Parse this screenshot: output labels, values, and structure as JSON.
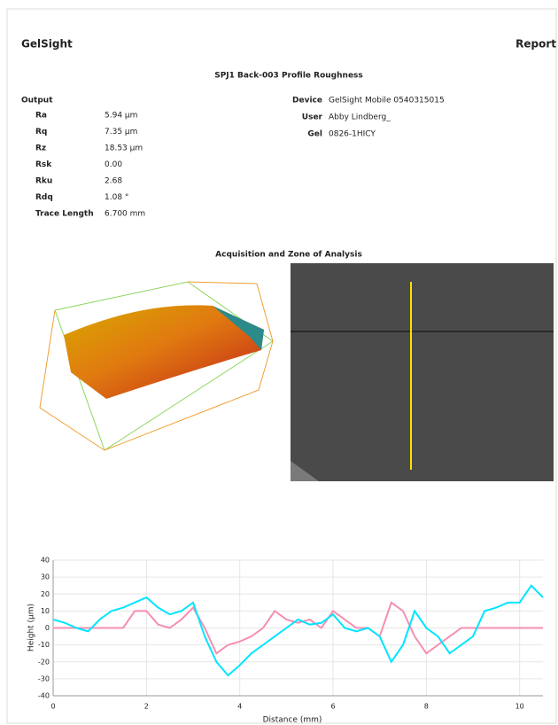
{
  "header": {
    "brand": "GelSight",
    "report": "Report",
    "title": "SPJ1 Back-003   Profile Roughness"
  },
  "output": {
    "heading": "Output",
    "rows": [
      [
        "Ra",
        "5.94 µm"
      ],
      [
        "Rq",
        "7.35 µm"
      ],
      [
        "Rz",
        "18.53 µm"
      ],
      [
        "Rsk",
        "0.00"
      ],
      [
        "Rku",
        "2.68"
      ],
      [
        "Rdq",
        "1.08 °"
      ],
      [
        "Trace Length",
        "6.700 mm"
      ]
    ]
  },
  "info": {
    "rows": [
      [
        "Device",
        "GelSight Mobile 0540315015"
      ],
      [
        "User",
        "Abby Lindberg_"
      ],
      [
        "Gel",
        "0826-1HICY"
      ]
    ]
  },
  "figure_title": "Acquisition and Zone of Analysis",
  "chart_data": {
    "type": "line",
    "x_label": "Distance (mm)",
    "y_label": "Height (µm)",
    "x": [
      0,
      0.25,
      0.5,
      0.75,
      1,
      1.25,
      1.5,
      1.75,
      2,
      2.25,
      2.5,
      2.75,
      3,
      3.25,
      3.5,
      3.75,
      4,
      4.25,
      4.5,
      4.75,
      5,
      5.25,
      5.5,
      5.75,
      6,
      6.25,
      6.5,
      6.75,
      7,
      7.25,
      7.5,
      7.75,
      8,
      8.25,
      8.5,
      8.75,
      9,
      9.25,
      9.5,
      9.75,
      10,
      10.25,
      10.5
    ],
    "series": [
      {
        "color": "#f48fb1",
        "values": [
          0,
          0,
          0,
          0,
          0,
          0,
          0,
          10,
          10,
          2,
          0,
          5,
          12,
          0,
          -15,
          -10,
          -8,
          -5,
          0,
          10,
          5,
          3,
          5,
          0,
          10,
          5,
          0,
          0,
          -5,
          15,
          10,
          -5,
          -15,
          -10,
          -5,
          0,
          0,
          0,
          0,
          0,
          0,
          0,
          0
        ]
      },
      {
        "color": "#00e5ff",
        "values": [
          5,
          3,
          0,
          -2,
          5,
          10,
          12,
          15,
          18,
          12,
          8,
          10,
          15,
          -5,
          -20,
          -28,
          -22,
          -15,
          -10,
          -5,
          0,
          5,
          2,
          3,
          8,
          0,
          -2,
          0,
          -5,
          -20,
          -10,
          10,
          0,
          -5,
          -15,
          -10,
          -5,
          10,
          12,
          15,
          15,
          25,
          18
        ]
      }
    ],
    "xlim": [
      0,
      10.5
    ],
    "xticks": [
      0,
      2,
      4,
      6,
      8,
      10
    ],
    "ylim": [
      -40,
      40
    ],
    "yticks": [
      -40,
      -30,
      -20,
      -10,
      0,
      10,
      20,
      30,
      40
    ],
    "grid": true
  }
}
